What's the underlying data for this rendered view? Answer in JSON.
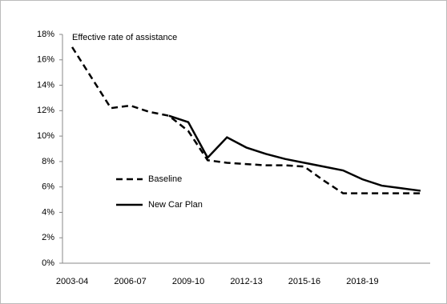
{
  "chart_data": {
    "type": "line",
    "annotation": "Effective rate of assistance",
    "categories": [
      "2003-04",
      null,
      null,
      "2006-07",
      null,
      null,
      "2009-10",
      null,
      null,
      "2012-13",
      null,
      null,
      "2015-16",
      null,
      null,
      "2018-19",
      null,
      null,
      null
    ],
    "series": [
      {
        "name": "Baseline",
        "color": "#000000",
        "dash": true,
        "values": [
          17,
          14.6,
          12.2,
          12.4,
          11.9,
          11.6,
          10.4,
          8.1,
          7.9,
          7.8,
          7.7,
          7.7,
          7.6,
          6.5,
          5.5,
          5.5,
          5.5,
          5.5,
          5.5
        ]
      },
      {
        "name": "New Car Plan",
        "color": "#000000",
        "dash": false,
        "values": [
          null,
          null,
          null,
          null,
          null,
          11.6,
          11.1,
          8.3,
          9.9,
          9.1,
          8.6,
          8.2,
          7.9,
          7.6,
          7.3,
          6.6,
          6.1,
          5.9,
          5.7
        ]
      }
    ],
    "ylim": [
      0,
      18
    ],
    "yticks": [
      {
        "value": 0,
        "label": "0%"
      },
      {
        "value": 2,
        "label": "2%"
      },
      {
        "value": 4,
        "label": "4%"
      },
      {
        "value": 6,
        "label": "6%"
      },
      {
        "value": 8,
        "label": "8%"
      },
      {
        "value": 10,
        "label": "10%"
      },
      {
        "value": 12,
        "label": "12%"
      },
      {
        "value": 14,
        "label": "14%"
      },
      {
        "value": 16,
        "label": "16%"
      },
      {
        "value": 18,
        "label": "18%"
      }
    ],
    "grid": false
  }
}
